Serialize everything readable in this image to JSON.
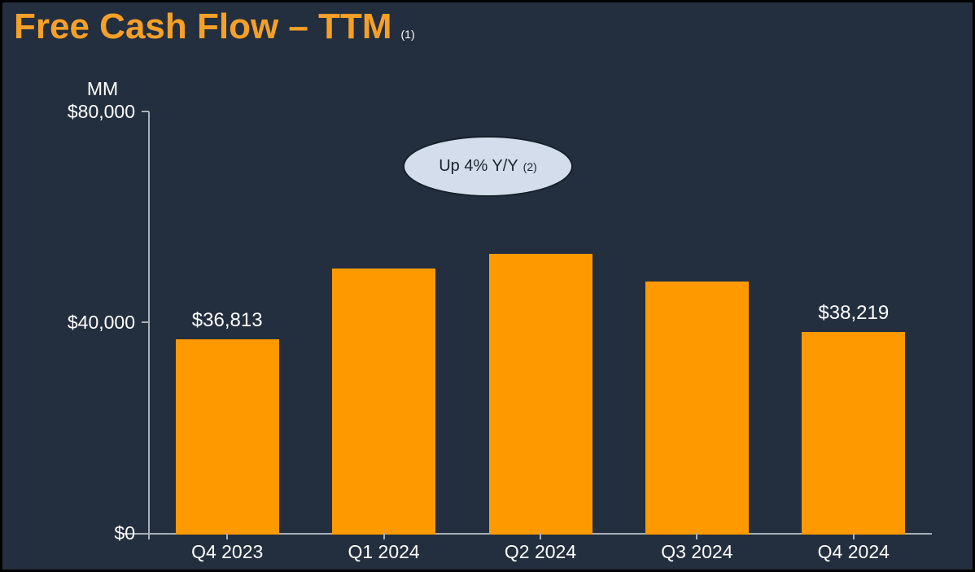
{
  "slide": {
    "title": "Free Cash Flow – TTM",
    "title_footnote": "(1)",
    "unit_label": "MM"
  },
  "annotation": {
    "text": "Up 4% Y/Y",
    "footnote": "(2)"
  },
  "colors": {
    "background": "#232F3E",
    "bar": "#FF9900",
    "title": "#F7A028",
    "axis": "#A9AFB8",
    "label": "#FFFFFF",
    "annotation_fill": "#D3DDEB",
    "annotation_border": "#15202B",
    "annotation_text": "#1A2530"
  },
  "chart_data": {
    "type": "bar",
    "title": "Free Cash Flow – TTM",
    "unit": "MM",
    "categories": [
      "Q4 2023",
      "Q1 2024",
      "Q2 2024",
      "Q3 2024",
      "Q4 2024"
    ],
    "values": [
      36813,
      50149,
      52973,
      47684,
      38219
    ],
    "data_labels": [
      "$36,813",
      "",
      "",
      "",
      "$38,219"
    ],
    "ylim": [
      0,
      80000
    ],
    "y_ticks": [
      {
        "value": 0,
        "label": "$0"
      },
      {
        "value": 40000,
        "label": "$40,000"
      },
      {
        "value": 80000,
        "label": "$80,000"
      }
    ],
    "grid": false,
    "legend": false,
    "annotation": "Up 4% Y/Y (2)"
  }
}
